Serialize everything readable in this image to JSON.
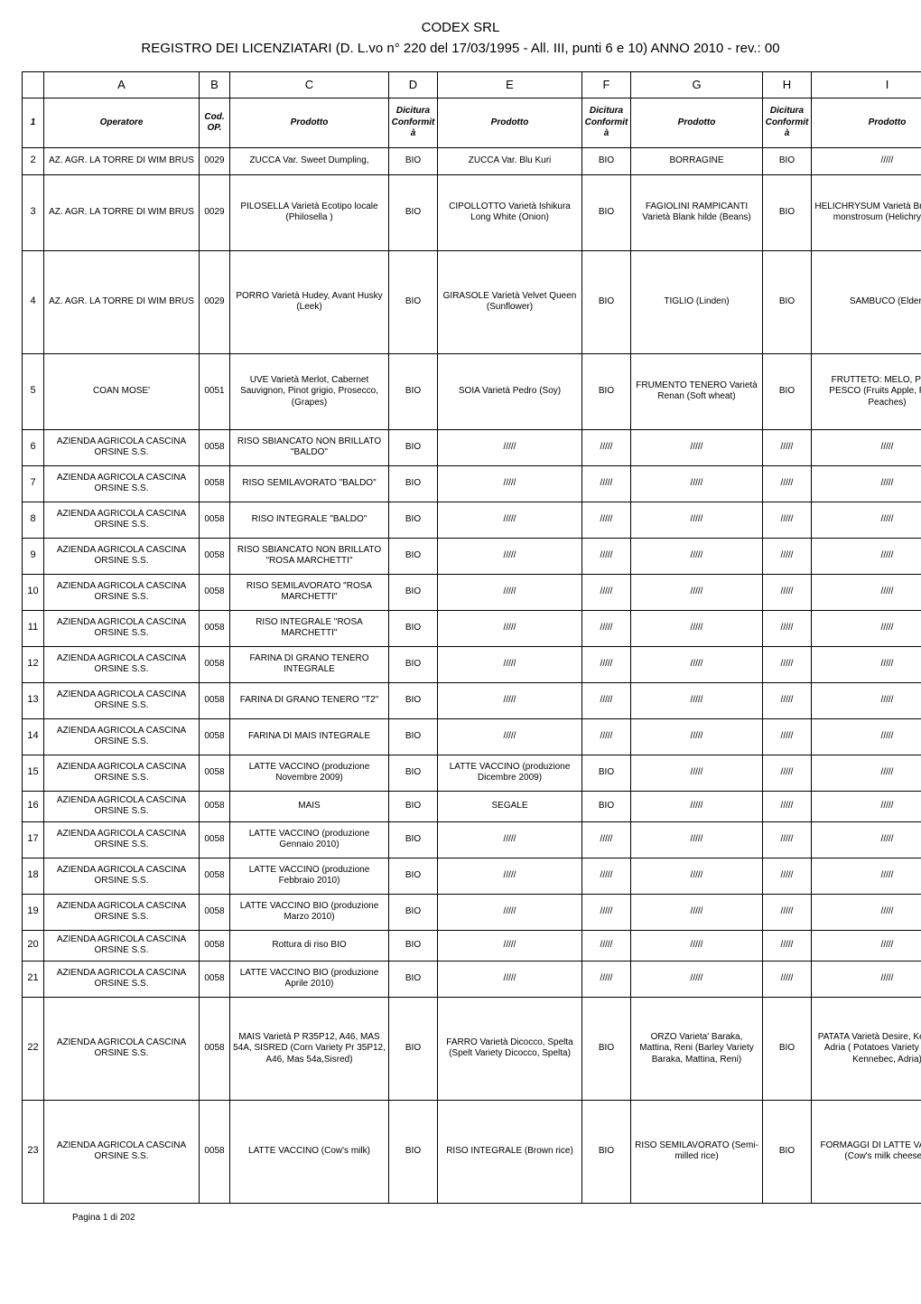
{
  "title": {
    "line1": "CODEX SRL",
    "line2": "REGISTRO DEI LICENZIATARI (D. L.vo n° 220 del 17/03/1995 - All. III, punti 6 e 10) ANNO 2010 - rev.: 00"
  },
  "letters": [
    "A",
    "B",
    "C",
    "D",
    "E",
    "F",
    "G",
    "H",
    "I"
  ],
  "headers": [
    "Operatore",
    "Cod. OP.",
    "Prodotto",
    "Dicitura Conformità",
    "Prodotto",
    "Dicitura Conformità",
    "Prodotto",
    "Dicitura Conformità",
    "Prodotto"
  ],
  "footer": "Pagina 1 di 202",
  "rows": [
    {
      "n": "2",
      "h": "s",
      "c": [
        "AZ. AGR. LA TORRE DI WIM BRUS",
        "0029",
        "ZUCCA Var. Sweet Dumpling,",
        "BIO",
        "ZUCCA Var. Blu Kuri",
        "BIO",
        "BORRAGINE",
        "BIO",
        "/////"
      ]
    },
    {
      "n": "3",
      "h": "l",
      "c": [
        "AZ. AGR. LA TORRE DI WIM BRUS",
        "0029",
        "PILOSELLA Varietà Ecotipo locale (Philosella )",
        "BIO",
        "CIPOLLOTTO Varietà Ishikura Long White (Onion)",
        "BIO",
        "FAGIOLINI RAMPICANTI Varietà Blank hilde (Beans)",
        "BIO",
        "HELICHRYSUM Varietà Bracteatum monstrosum (Helichrysum)"
      ]
    },
    {
      "n": "4",
      "h": "xl",
      "c": [
        "AZ. AGR. LA TORRE DI WIM BRUS",
        "0029",
        "PORRO Varietà Hudey, Avant Husky (Leek)",
        "BIO",
        "GIRASOLE Varietà Velvet Queen (Sunflower)",
        "BIO",
        "TIGLIO (Linden)",
        "BIO",
        "SAMBUCO (Elder)"
      ]
    },
    {
      "n": "5",
      "h": "l",
      "c": [
        "COAN MOSE'",
        "0051",
        "UVE Varietà Merlot, Cabernet Sauvignon, Pinot grigio, Prosecco, (Grapes)",
        "BIO",
        "SOIA Varietà Pedro (Soy)",
        "BIO",
        "FRUMENTO TENERO Varietà Renan (Soft wheat)",
        "BIO",
        "FRUTTETO: MELO, PERO, PESCO (Fruits Apple, Pears, Peaches)"
      ]
    },
    {
      "n": "6",
      "h": "m",
      "c": [
        "AZIENDA AGRICOLA CASCINA ORSINE S.S.",
        "0058",
        "RISO SBIANCATO NON BRILLATO \"BALDO\"",
        "BIO",
        "/////",
        "/////",
        "/////",
        "/////",
        "/////"
      ]
    },
    {
      "n": "7",
      "h": "m",
      "c": [
        "AZIENDA AGRICOLA CASCINA ORSINE S.S.",
        "0058",
        "RISO SEMILAVORATO \"BALDO\"",
        "BIO",
        "/////",
        "/////",
        "/////",
        "/////",
        "/////"
      ]
    },
    {
      "n": "8",
      "h": "m",
      "c": [
        "AZIENDA AGRICOLA CASCINA ORSINE S.S.",
        "0058",
        "RISO INTEGRALE \"BALDO\"",
        "BIO",
        "/////",
        "/////",
        "/////",
        "/////",
        "/////"
      ]
    },
    {
      "n": "9",
      "h": "m",
      "c": [
        "AZIENDA AGRICOLA CASCINA ORSINE S.S.",
        "0058",
        "RISO SBIANCATO NON BRILLATO \"ROSA MARCHETTI\"",
        "BIO",
        "/////",
        "/////",
        "/////",
        "/////",
        "/////"
      ]
    },
    {
      "n": "10",
      "h": "m",
      "c": [
        "AZIENDA AGRICOLA CASCINA ORSINE S.S.",
        "0058",
        "RISO SEMILAVORATO \"ROSA MARCHETTI\"",
        "BIO",
        "/////",
        "/////",
        "/////",
        "/////",
        "/////"
      ]
    },
    {
      "n": "11",
      "h": "m",
      "c": [
        "AZIENDA AGRICOLA CASCINA ORSINE S.S.",
        "0058",
        "RISO INTEGRALE \"ROSA MARCHETTI\"",
        "BIO",
        "/////",
        "/////",
        "/////",
        "/////",
        "/////"
      ]
    },
    {
      "n": "12",
      "h": "m",
      "c": [
        "AZIENDA AGRICOLA CASCINA ORSINE S.S.",
        "0058",
        "FARINA DI GRANO TENERO INTEGRALE",
        "BIO",
        "/////",
        "/////",
        "/////",
        "/////",
        "/////"
      ]
    },
    {
      "n": "13",
      "h": "m",
      "c": [
        "AZIENDA AGRICOLA CASCINA ORSINE S.S.",
        "0058",
        "FARINA DI GRANO TENERO \"T2\"",
        "BIO",
        "/////",
        "/////",
        "/////",
        "/////",
        "/////"
      ]
    },
    {
      "n": "14",
      "h": "m",
      "c": [
        "AZIENDA AGRICOLA CASCINA ORSINE S.S.",
        "0058",
        "FARINA DI MAIS INTEGRALE",
        "BIO",
        "/////",
        "/////",
        "/////",
        "/////",
        "/////"
      ]
    },
    {
      "n": "15",
      "h": "m",
      "c": [
        "AZIENDA AGRICOLA CASCINA ORSINE S.S.",
        "0058",
        "LATTE VACCINO (produzione Novembre 2009)",
        "BIO",
        "LATTE VACCINO (produzione Dicembre 2009)",
        "BIO",
        "/////",
        "/////",
        "/////"
      ]
    },
    {
      "n": "16",
      "h": "s",
      "c": [
        "AZIENDA AGRICOLA CASCINA ORSINE S.S.",
        "0058",
        "MAIS",
        "BIO",
        "SEGALE",
        "BIO",
        "/////",
        "/////",
        "/////"
      ]
    },
    {
      "n": "17",
      "h": "m",
      "c": [
        "AZIENDA AGRICOLA CASCINA ORSINE S.S.",
        "0058",
        "LATTE VACCINO (produzione Gennaio 2010)",
        "BIO",
        "/////",
        "/////",
        "/////",
        "/////",
        "/////"
      ]
    },
    {
      "n": "18",
      "h": "m",
      "c": [
        "AZIENDA AGRICOLA CASCINA ORSINE S.S.",
        "0058",
        "LATTE VACCINO (produzione Febbraio 2010)",
        "BIO",
        "/////",
        "/////",
        "/////",
        "/////",
        "/////"
      ]
    },
    {
      "n": "19",
      "h": "m",
      "c": [
        "AZIENDA AGRICOLA CASCINA ORSINE S.S.",
        "0058",
        "LATTE VACCINO BIO (produzione Marzo 2010)",
        "BIO",
        "/////",
        "/////",
        "/////",
        "/////",
        "/////"
      ]
    },
    {
      "n": "20",
      "h": "s",
      "c": [
        "AZIENDA AGRICOLA CASCINA ORSINE S.S.",
        "0058",
        "Rottura di riso BIO",
        "BIO",
        "/////",
        "/////",
        "/////",
        "/////",
        "/////"
      ]
    },
    {
      "n": "21",
      "h": "m",
      "c": [
        "AZIENDA AGRICOLA CASCINA ORSINE S.S.",
        "0058",
        "LATTE VACCINO BIO (produzione Aprile 2010)",
        "BIO",
        "/////",
        "/////",
        "/////",
        "/////",
        "/////"
      ]
    },
    {
      "n": "22",
      "h": "xl",
      "c": [
        "AZIENDA AGRICOLA CASCINA ORSINE S.S.",
        "0058",
        "MAIS Varietà P R35P12, A46, MAS 54A, SISRED (Corn Variety Pr 35P12, A46, Mas 54a,Sisred)",
        "BIO",
        "FARRO Varietà Dicocco, Spelta (Spelt Variety Dicocco, Spelta)",
        "BIO",
        "ORZO Varieta' Baraka, Mattina, Reni (Barley Variety Baraka, Mattina, Reni)",
        "BIO",
        "PATATA Varietà Desire, Kennebec, Adria ( Potatoes Variety Desire, Kennebec, Adria)"
      ]
    },
    {
      "n": "23",
      "h": "xl",
      "c": [
        "AZIENDA AGRICOLA CASCINA ORSINE S.S.",
        "0058",
        "LATTE VACCINO (Cow's milk)",
        "BIO",
        "RISO INTEGRALE (Brown rice)",
        "BIO",
        "RISO SEMILAVORATO (Semi-milled rice)",
        "BIO",
        "FORMAGGI DI LATTE VACCINO (Cow's milk cheeses)"
      ]
    }
  ]
}
